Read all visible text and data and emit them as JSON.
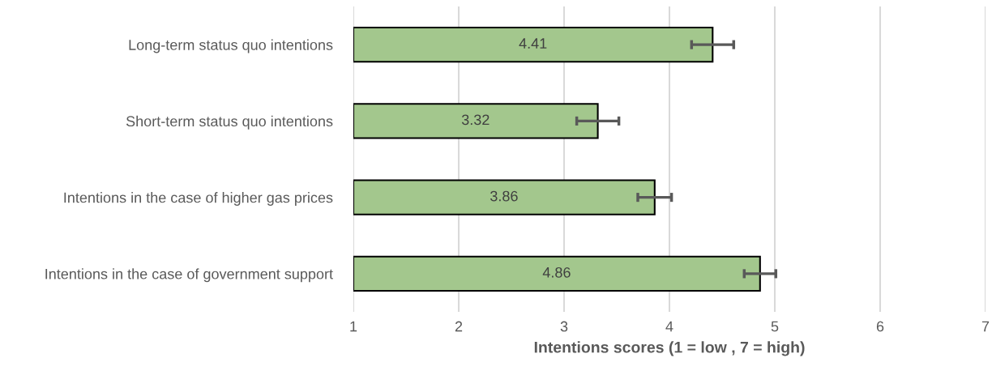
{
  "chart_data": {
    "type": "bar",
    "orientation": "horizontal",
    "xlabel": "Intentions scores (1 = low , 7 = high)",
    "categories": [
      "Long-term status quo intentions",
      "Short-term status quo intentions",
      "Intentions in the case of higher gas prices",
      "Intentions in the case of government support"
    ],
    "values": [
      4.41,
      3.32,
      3.86,
      4.86
    ],
    "errors": [
      0.2,
      0.2,
      0.16,
      0.15
    ],
    "color": "#a3c78d",
    "xlim": [
      1,
      7
    ],
    "xticks": [
      1,
      2,
      3,
      4,
      5,
      6,
      7
    ],
    "grid": "x",
    "data_labels": true
  }
}
